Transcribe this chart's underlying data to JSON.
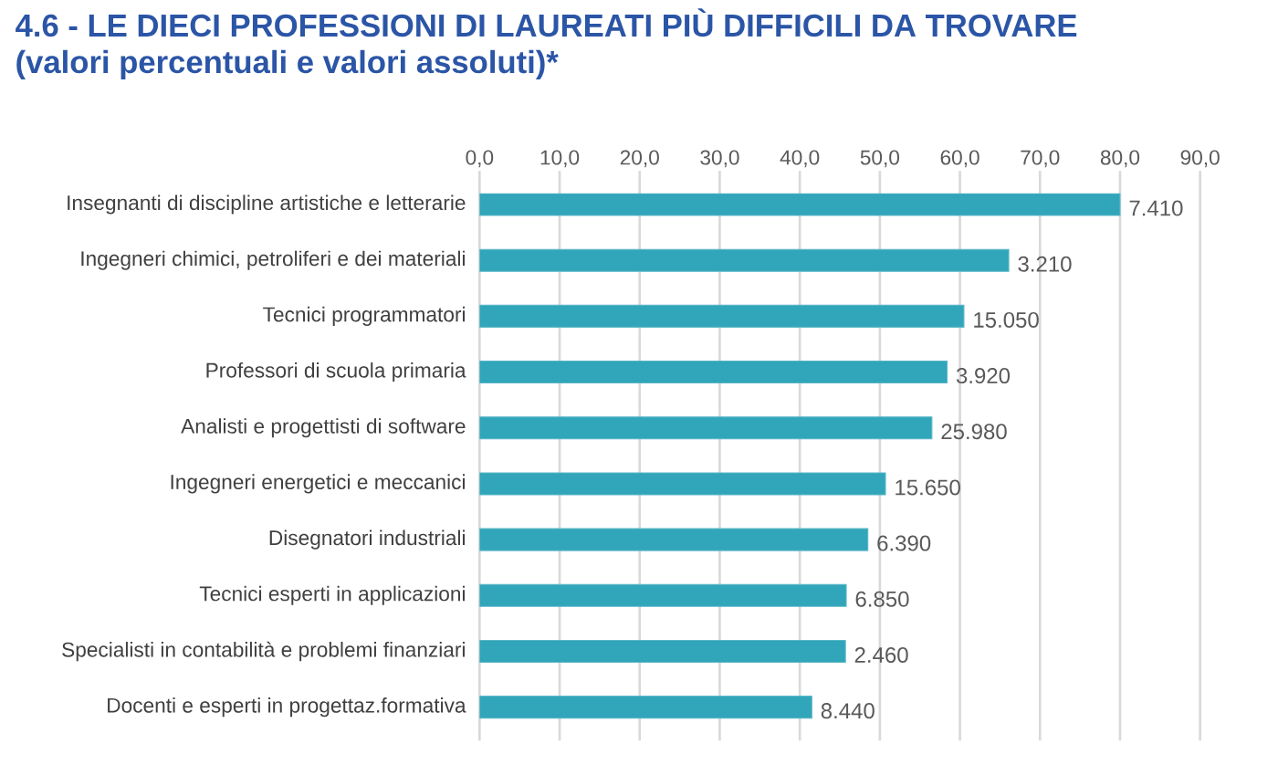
{
  "chart_data": {
    "type": "bar",
    "orientation": "horizontal",
    "title": "4.6 - LE DIECI PROFESSIONI DI LAUREATI PIÙ DIFFICILI DA TROVARE",
    "subtitle": "(valori percentuali e valori assoluti)*",
    "categories": [
      "Insegnanti di discipline artistiche e letterarie",
      "Ingegneri chimici, petroliferi e dei materiali",
      "Tecnici programmatori",
      "Professori di scuola primaria",
      "Analisti e progettisti di software",
      "Ingegneri energetici e meccanici",
      "Disegnatori industriali",
      "Tecnici esperti in applicazioni",
      "Specialisti in contabilità e problemi finanziari",
      "Docenti e esperti in progettaz.formativa"
    ],
    "values": [
      80.0,
      66.1,
      60.5,
      58.4,
      56.5,
      50.7,
      48.5,
      45.8,
      45.7,
      41.5
    ],
    "annotations": [
      {
        "text": "7.410",
        "x": 80.0,
        "y": "Insegnanti di discipline artistiche e letterarie"
      },
      {
        "text": "3.210",
        "x": 66.1,
        "y": "Ingegneri chimici, petroliferi e dei materiali"
      },
      {
        "text": "15.050",
        "x": 60.5,
        "y": "Tecnici programmatori"
      },
      {
        "text": "3.920",
        "x": 58.4,
        "y": "Professori di scuola primaria"
      },
      {
        "text": "25.980",
        "x": 56.5,
        "y": "Analisti e progettisti di software"
      },
      {
        "text": "15.650",
        "x": 50.7,
        "y": "Ingegneri energetici e meccanici"
      },
      {
        "text": "6.390",
        "x": 48.5,
        "y": "Disegnatori industriali"
      },
      {
        "text": "6.850",
        "x": 45.8,
        "y": "Tecnici esperti in applicazioni"
      },
      {
        "text": "2.460",
        "x": 45.7,
        "y": "Specialisti in contabilità e problemi finanziari"
      },
      {
        "text": "8.440",
        "x": 41.5,
        "y": "Docenti e esperti in progettaz.formativa"
      }
    ],
    "color": "#31a5b9",
    "xlim": [
      0,
      90
    ],
    "xticks": [
      {
        "value": 0,
        "label": "0,0"
      },
      {
        "value": 10,
        "label": "10,0"
      },
      {
        "value": 20,
        "label": "20,0"
      },
      {
        "value": 30,
        "label": "30,0"
      },
      {
        "value": 40,
        "label": "40,0"
      },
      {
        "value": 50,
        "label": "50,0"
      },
      {
        "value": 60,
        "label": "60,0"
      },
      {
        "value": 70,
        "label": "70,0"
      },
      {
        "value": 80,
        "label": "80,0"
      },
      {
        "value": 90,
        "label": "90,0"
      }
    ],
    "grid": "x"
  }
}
